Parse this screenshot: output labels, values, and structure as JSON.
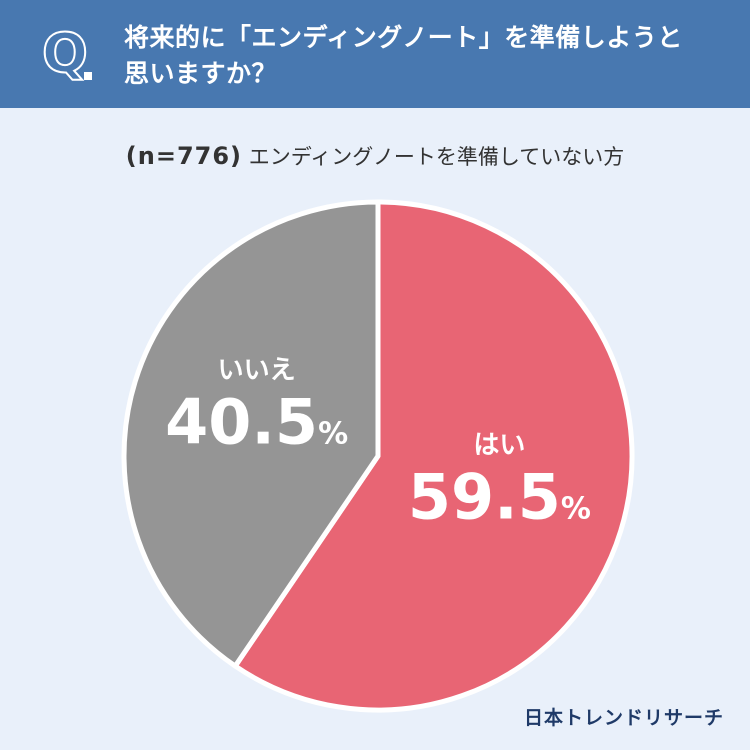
{
  "header": {
    "q_label": "Q",
    "question_line1": "将来的に「エンディングノート」を準備しようと",
    "question_line2": "思いますか？"
  },
  "subtitle": {
    "sample": "(n=776)",
    "text": "エンディングノートを準備していない方"
  },
  "chart_data": {
    "type": "pie",
    "slices": [
      {
        "label": "はい",
        "value": 59.5,
        "color": "#e86574"
      },
      {
        "label": "いいえ",
        "value": 40.5,
        "color": "#959595"
      }
    ],
    "unit": "%",
    "start_angle": "12 o'clock",
    "direction": "clockwise"
  },
  "brand": {
    "logo": "日本トレンドリサーチ"
  }
}
